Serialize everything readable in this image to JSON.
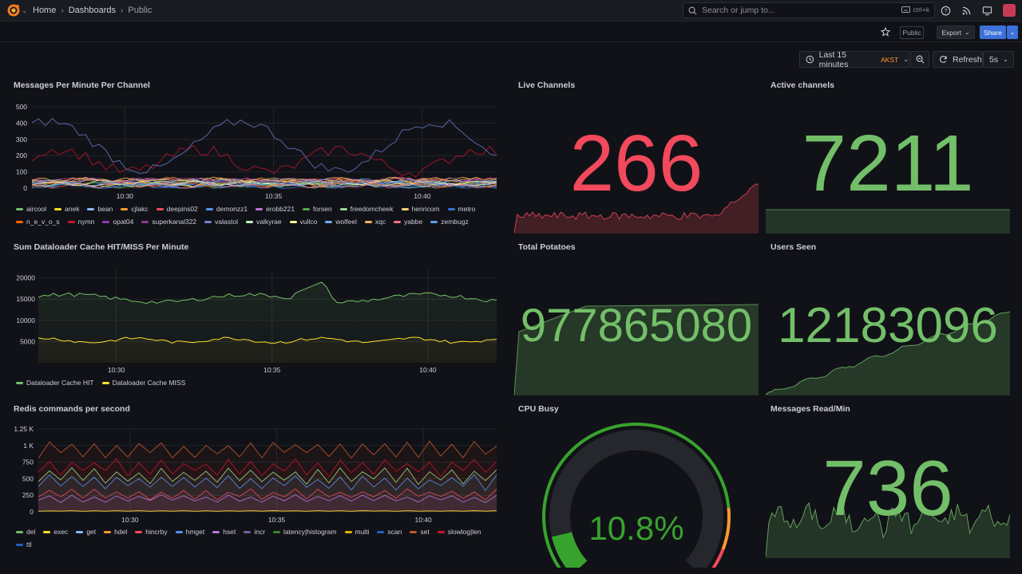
{
  "topbar": {
    "breadcrumb": [
      "Home",
      "Dashboards",
      "Public"
    ],
    "search_placeholder": "Search or jump to...",
    "search_shortcut": "ctrl+k",
    "icons": [
      "grafana-logo-icon",
      "help-icon",
      "news-icon",
      "kiosk-icon",
      "avatar"
    ]
  },
  "toolbar": {
    "public_label": "Public",
    "export_label": "Export",
    "share_label": "Share"
  },
  "timepicker": {
    "range_label": "Last 15 minutes",
    "timezone": "AKST",
    "refresh_label": "Refresh",
    "refresh_interval": "5s"
  },
  "colors": {
    "background": "#111217",
    "green": "#73bf69",
    "red": "#f2495c",
    "yellow": "#fade2a",
    "blue": "#5794f2",
    "accent": "#3d71d9"
  },
  "panels": {
    "messages": {
      "title": "Messages Per Minute Per Channel",
      "yticks": [
        "500",
        "400",
        "300",
        "200",
        "100",
        "0"
      ],
      "xticks": [
        "10:30",
        "10:35",
        "10:40"
      ],
      "legend": [
        {
          "name": "aircool",
          "color": "#73bf69"
        },
        {
          "name": "anek",
          "color": "#fade2a"
        },
        {
          "name": "bean",
          "color": "#8ab8ff"
        },
        {
          "name": "cjlakc",
          "color": "#ff9830"
        },
        {
          "name": "deepins02",
          "color": "#f2495c"
        },
        {
          "name": "demonzz1",
          "color": "#5794f2"
        },
        {
          "name": "erobb221",
          "color": "#b877d9"
        },
        {
          "name": "forsen",
          "color": "#56a64b"
        },
        {
          "name": "freedomcheek",
          "color": "#96d98d"
        },
        {
          "name": "henricom",
          "color": "#ffcb7d"
        },
        {
          "name": "metro",
          "color": "#3274d9"
        },
        {
          "name": "n_e_v_o_s",
          "color": "#fa6400"
        },
        {
          "name": "nymn",
          "color": "#c4162a"
        },
        {
          "name": "opat04",
          "color": "#8f3bb8"
        },
        {
          "name": "superkanal322",
          "color": "#8e3b8e"
        },
        {
          "name": "valastol",
          "color": "#7282d9"
        },
        {
          "name": "valkyrae",
          "color": "#c8f2c2"
        },
        {
          "name": "vullco",
          "color": "#fff899"
        },
        {
          "name": "wolfeel",
          "color": "#73aef2"
        },
        {
          "name": "xqc",
          "color": "#ffb357"
        },
        {
          "name": "yabbe",
          "color": "#ff7383"
        },
        {
          "name": "zembugz",
          "color": "#5aa0e6"
        }
      ]
    },
    "cache": {
      "title": "Sum Dataloader Cache HIT/MISS Per Minute",
      "yticks": [
        "20000",
        "15000",
        "10000",
        "5000"
      ],
      "xticks": [
        "10:30",
        "10:35",
        "10:40"
      ],
      "legend": [
        {
          "name": "Dataloader Cache HIT",
          "color": "#73bf69"
        },
        {
          "name": "Dataloader Cache MISS",
          "color": "#fade2a"
        }
      ]
    },
    "redis": {
      "title": "Redis commands per second",
      "yticks": [
        "1.25 K",
        "1 K",
        "750",
        "500",
        "250",
        "0"
      ],
      "xticks": [
        "10:30",
        "10:35",
        "10:40"
      ],
      "legend": [
        {
          "name": "del",
          "color": "#73bf69"
        },
        {
          "name": "exec",
          "color": "#fade2a"
        },
        {
          "name": "get",
          "color": "#8ab8ff"
        },
        {
          "name": "hdel",
          "color": "#ff9830"
        },
        {
          "name": "hincrby",
          "color": "#f2495c"
        },
        {
          "name": "hmget",
          "color": "#5794f2"
        },
        {
          "name": "hset",
          "color": "#b877d9"
        },
        {
          "name": "incr",
          "color": "#705da0"
        },
        {
          "name": "latency|histogram",
          "color": "#37872d"
        },
        {
          "name": "multi",
          "color": "#e0b400"
        },
        {
          "name": "scan",
          "color": "#1f60c4"
        },
        {
          "name": "set",
          "color": "#c4582a"
        },
        {
          "name": "slowlog|len",
          "color": "#c4162a"
        },
        {
          "name": "ttl",
          "color": "#1f60c4"
        }
      ]
    },
    "live_channels": {
      "title": "Live Channels",
      "value": "266",
      "color": "#f2495c"
    },
    "active_channels": {
      "title": "Active channels",
      "value": "7211",
      "color": "#73bf69"
    },
    "total_potatoes": {
      "title": "Total Potatoes",
      "value": "977865080",
      "color": "#73bf69"
    },
    "users_seen": {
      "title": "Users Seen",
      "value": "12183096",
      "color": "#73bf69"
    },
    "cpu_busy": {
      "title": "CPU Busy",
      "value": "10.8%",
      "percent": 10.8,
      "color": "#37a32d"
    },
    "messages_read": {
      "title": "Messages Read/Min",
      "value": "736",
      "color": "#73bf69"
    }
  }
}
